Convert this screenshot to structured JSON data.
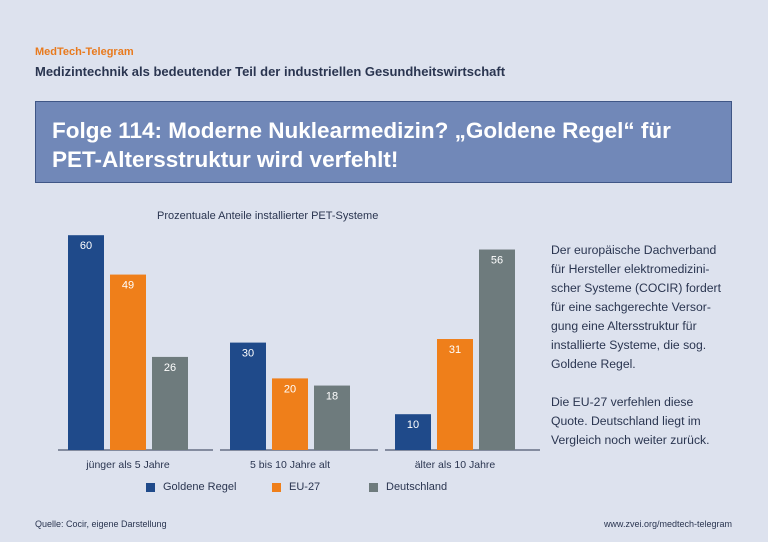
{
  "header": {
    "brand": "MedTech-Telegram",
    "subtitle": "Medizintechnik als bedeutender Teil der industriellen Gesundheitswirtschaft"
  },
  "title": "Folge 114: Moderne Nuklearmedizin? „Goldene Regel“ für\nPET-Altersstruktur wird verfehlt!",
  "colors": {
    "accent": "#e87a1e",
    "title_box": "#7188b8",
    "background": "#dde2ee",
    "text": "#2a3550"
  },
  "chart_data": {
    "type": "bar",
    "title": "Prozentuale Anteile installierter PET-Systeme",
    "categories": [
      "jünger als 5 Jahre",
      "5 bis 10 Jahre alt",
      "älter als 10 Jahre"
    ],
    "series": [
      {
        "name": "Goldene Regel",
        "color": "#1f4a8a",
        "values": [
          60,
          30,
          10
        ]
      },
      {
        "name": "EU-27",
        "color": "#ef7f1a",
        "values": [
          49,
          20,
          31
        ]
      },
      {
        "name": "Deutschland",
        "color": "#6e7b7d",
        "values": [
          26,
          18,
          56
        ]
      }
    ],
    "ylim": [
      0,
      60
    ],
    "grid": false,
    "legend": "bottom",
    "data_labels": true
  },
  "sidetext": {
    "paragraph1": "Der europäische Dachverband\nfür Hersteller elektromedizini-\nscher Systeme (COCIR) fordert\nfür eine sachgerechte Versor-\ngung eine Altersstruktur für\ninstallierte Systeme, die sog.\nGoldene Regel.",
    "paragraph2": "Die EU-27 verfehlen diese\nQuote. Deutschland liegt im\nVergleich noch weiter zurück."
  },
  "footer": {
    "source": "Quelle: Cocir, eigene Darstellung",
    "url": "www.zvei.org/medtech-telegram"
  }
}
